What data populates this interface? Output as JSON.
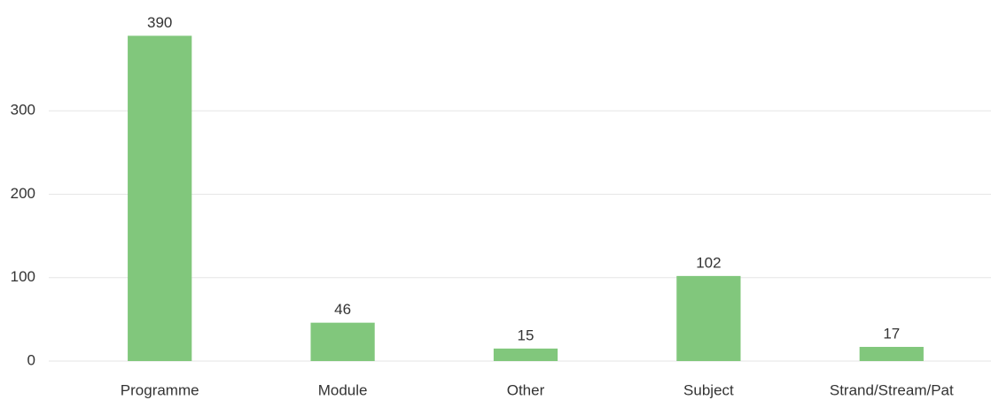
{
  "chart_data": {
    "type": "bar",
    "categories": [
      "Programme",
      "Module",
      "Other",
      "Subject",
      "Strand/Stream/Pat"
    ],
    "values": [
      390,
      46,
      15,
      102,
      17
    ],
    "color": "#81c77c",
    "ylim": [
      0,
      400
    ],
    "yticks": [
      0,
      100,
      200,
      300
    ],
    "grid": true
  }
}
